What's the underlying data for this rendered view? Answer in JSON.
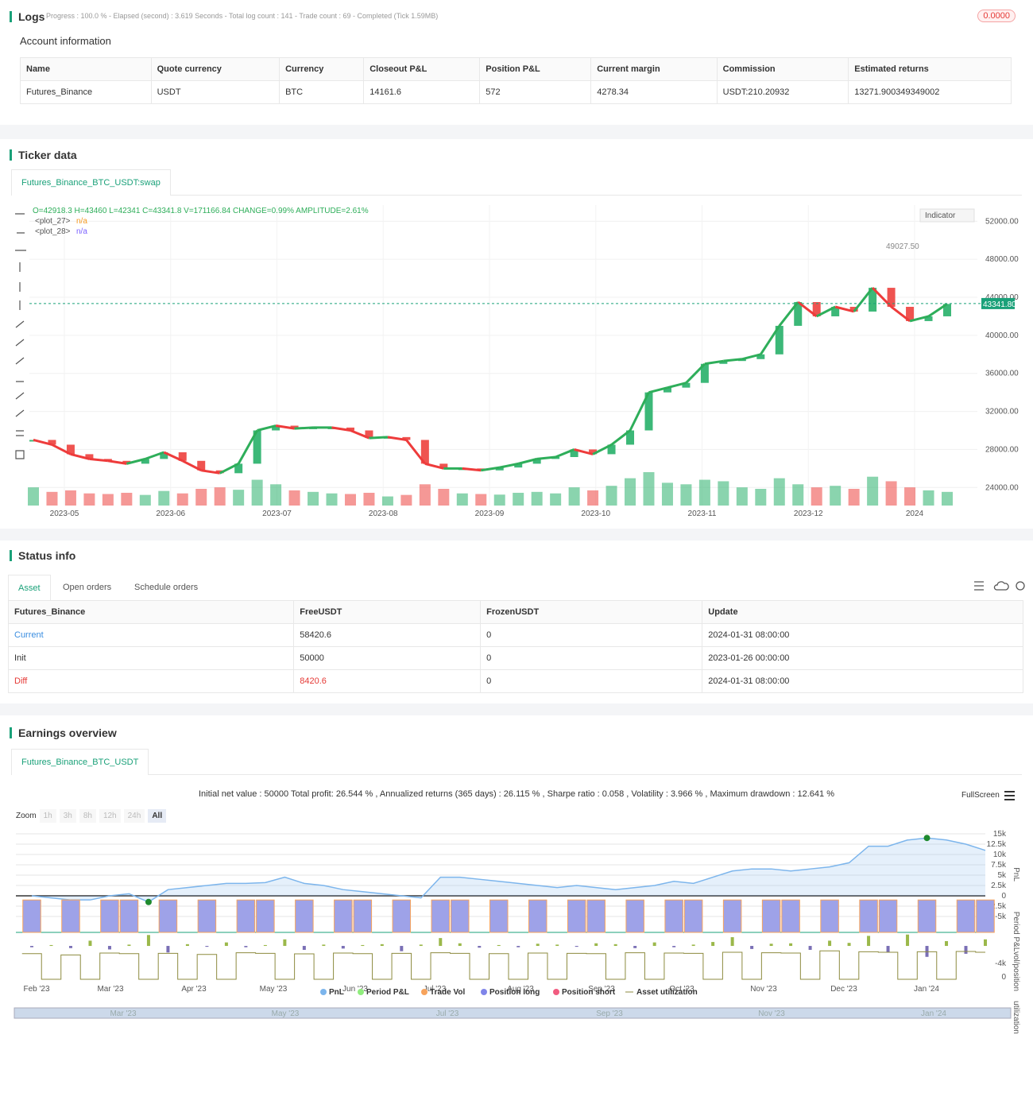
{
  "logs": {
    "title": "Logs",
    "progress": "Progress : 100.0 % - Elapsed (second) : 3.619 Seconds - Total log count : 141 - Trade count : 69 - Completed (Tick 1.59MB)",
    "badge": "0.0000",
    "account_title": "Account information",
    "table": {
      "columns": [
        "Name",
        "Quote currency",
        "Currency",
        "Closeout P&L",
        "Position P&L",
        "Current margin",
        "Commission",
        "Estimated returns"
      ],
      "rows": [
        [
          "Futures_Binance",
          "USDT",
          "BTC",
          "14161.6",
          "572",
          "4278.34",
          "USDT:210.20932",
          "13271.900349349002"
        ]
      ]
    }
  },
  "ticker": {
    "title": "Ticker data",
    "tab": "Futures_Binance_BTC_USDT:swap",
    "ohlc": "O=42918.3 H=43460 L=42341 C=43341.8 V=171166.84 CHANGE=0.99% AMPLITUDE=2.61%",
    "plots": [
      {
        "name": "<plot_27>",
        "value": "n/a",
        "color": "#f59a23"
      },
      {
        "name": "<plot_28>",
        "value": "n/a",
        "color": "#7b61ff"
      }
    ],
    "indicator_button": "Indicator",
    "last_price": {
      "value": 43341.8,
      "label": "43341.80"
    },
    "high_label": "49027.50",
    "chart_data": {
      "type": "candlestick",
      "x_labels": [
        "2023-05",
        "2023-06",
        "2023-07",
        "2023-08",
        "2023-09",
        "2023-10",
        "2023-11",
        "2023-12",
        "2024"
      ],
      "closes": [
        29000,
        28500,
        27500,
        27000,
        26800,
        26500,
        27000,
        27700,
        26800,
        25800,
        25500,
        26500,
        30000,
        30500,
        30200,
        30300,
        30300,
        30000,
        29200,
        29300,
        29000,
        26500,
        26000,
        26000,
        25800,
        26100,
        26500,
        27000,
        27200,
        28000,
        27500,
        28500,
        30000,
        34000,
        34500,
        35000,
        37000,
        37300,
        37500,
        38000,
        41000,
        43500,
        42000,
        43000,
        42500,
        45000,
        43000,
        41500,
        42000,
        43300
      ],
      "volumes": [
        60,
        45,
        50,
        40,
        38,
        42,
        35,
        48,
        40,
        55,
        60,
        52,
        85,
        70,
        50,
        45,
        40,
        38,
        42,
        30,
        35,
        70,
        55,
        40,
        38,
        36,
        42,
        45,
        40,
        60,
        50,
        65,
        90,
        110,
        75,
        70,
        85,
        80,
        60,
        55,
        90,
        70,
        60,
        65,
        55,
        95,
        80,
        60,
        50,
        45
      ],
      "up_color": "#3cb878",
      "down_color": "#ef5350",
      "ylim": [
        22100,
        53700
      ],
      "yticks": [
        {
          "value": 52000,
          "label": "52000.00"
        },
        {
          "value": 48000,
          "label": "48000.00"
        },
        {
          "value": 44000,
          "label": "44000.00"
        },
        {
          "value": 40000,
          "label": "40000.00"
        },
        {
          "value": 36000,
          "label": "36000.00"
        },
        {
          "value": 32000,
          "label": "32000.00"
        },
        {
          "value": 28000,
          "label": "28000.00"
        },
        {
          "value": 24000,
          "label": "24000.00"
        }
      ]
    }
  },
  "status": {
    "title": "Status info",
    "tabs": [
      "Asset",
      "Open orders",
      "Schedule orders"
    ],
    "table": {
      "columns": [
        "Futures_Binance",
        "FreeUSDT",
        "FrozenUSDT",
        "Update"
      ],
      "rows": [
        [
          "Current",
          "58420.6",
          "0",
          "2024-01-31 08:00:00"
        ],
        [
          "Init",
          "50000",
          "0",
          "2023-01-26 00:00:00"
        ],
        [
          "Diff",
          "8420.6",
          "0",
          "2024-01-31 08:00:00"
        ]
      ]
    }
  },
  "earnings": {
    "title": "Earnings overview",
    "tab": "Futures_Binance_BTC_USDT",
    "summary": "Initial net value : 50000 Total profit: 26.544 % , Annualized returns (365 days) : 26.115 % , Sharpe ratio : 0.058 , Volatility : 3.966 % , Maximum drawdown : 12.641 %",
    "fullscreen": "FullScreen",
    "zoom_label": "Zoom",
    "zoom_buttons": [
      "1h",
      "3h",
      "8h",
      "12h",
      "24h",
      "All"
    ],
    "chart_data": {
      "type": "line",
      "x_labels": [
        "Feb '23",
        "Mar '23",
        "Apr '23",
        "May '23",
        "Jun '23",
        "Jul '23",
        "Aug '23",
        "Sep '23",
        "Oct '23",
        "Nov '23",
        "Dec '23",
        "Jan '24"
      ],
      "axis_titles": [
        "PnL",
        "Period P&L",
        "vol/position",
        "utilization"
      ],
      "pnl": [
        0,
        -500,
        -1000,
        -1000,
        0,
        500,
        -1500,
        1500,
        2000,
        2500,
        3000,
        3000,
        3200,
        4500,
        3000,
        2500,
        1500,
        1000,
        500,
        0,
        -500,
        4500,
        4500,
        4000,
        3500,
        3000,
        2500,
        2000,
        2500,
        2000,
        1500,
        2000,
        2500,
        3500,
        3000,
        4500,
        6000,
        6500,
        6500,
        6000,
        6500,
        7000,
        8000,
        12000,
        12000,
        13500,
        14000,
        13500,
        12500,
        11000
      ],
      "ylim": [
        -6350,
        16730
      ],
      "yticks": [
        {
          "value": 15000,
          "label": "15k"
        },
        {
          "value": 12500,
          "label": "12.5k"
        },
        {
          "value": 10000,
          "label": "10k"
        },
        {
          "value": 7500,
          "label": "7.5k"
        },
        {
          "value": 5000,
          "label": "5k"
        },
        {
          "value": 2500,
          "label": "2.5k"
        },
        0,
        {
          "value": -2500,
          "label": "-2.5k"
        },
        {
          "value": -5000,
          "label": "-5k"
        }
      ],
      "period_pnl": [
        -300,
        200,
        -500,
        1200,
        -800,
        300,
        2500,
        -1500,
        400,
        -200,
        800,
        -300,
        200,
        1500,
        -900,
        300,
        -600,
        200,
        400,
        -1200,
        300,
        1800,
        600,
        -400,
        200,
        -300,
        500,
        300,
        -200,
        600,
        400,
        -500,
        800,
        -300,
        300,
        900,
        2000,
        -700,
        500,
        600,
        -900,
        1200,
        700,
        2300,
        -1400,
        2600,
        -2500,
        1100,
        -1800,
        1500
      ],
      "period_ylim": [
        -4900,
        4550
      ],
      "period_yticks": [
        {
          "value": -4000,
          "label": "-4k"
        }
      ],
      "position_long": [
        1,
        0,
        1,
        0,
        1,
        1,
        0,
        1,
        0,
        1,
        0,
        1,
        1,
        0,
        1,
        0,
        1,
        1,
        0,
        1,
        0,
        1,
        1,
        0,
        1,
        0,
        1,
        0,
        1,
        1,
        0,
        1,
        0,
        1,
        1,
        0,
        1,
        0,
        1,
        1,
        0,
        1,
        0,
        1,
        1,
        0,
        1,
        0,
        1,
        1
      ],
      "position_ylim": [
        0,
        1.25
      ],
      "utilization": [
        0.95,
        0,
        0.9,
        0,
        0.97,
        0.95,
        0,
        0.96,
        0,
        0.92,
        0,
        0.98,
        0.96,
        0,
        0.94,
        0,
        0.97,
        0.95,
        0,
        0.96,
        0,
        0.98,
        0.96,
        0,
        0.95,
        0,
        0.97,
        0,
        0.96,
        0.95,
        0,
        0.98,
        0,
        0.97,
        0.96,
        0,
        1.0,
        0,
        0.98,
        0.97,
        0,
        1.05,
        0,
        1.02,
        1.0,
        0,
        1.02,
        0,
        1.03,
        1.0
      ],
      "utilization_ylim": [
        -0.09,
        1.53
      ],
      "utilization_yticks": [
        0
      ],
      "legend": [
        {
          "name": "PnL",
          "color": "#7cb5ec"
        },
        {
          "name": "Period P&L",
          "color": "#90ed7d"
        },
        {
          "name": "Trade Vol",
          "color": "#f7a35c"
        },
        {
          "name": "Position long",
          "color": "#8085e9"
        },
        {
          "name": "Position short",
          "color": "#f15c80"
        },
        {
          "name": "Asset utilization",
          "color": "#8d8b3f"
        }
      ],
      "navigator_labels": [
        "Mar '23",
        "May '23",
        "Jul '23",
        "Sep '23",
        "Nov '23",
        "Jan '24"
      ]
    }
  }
}
